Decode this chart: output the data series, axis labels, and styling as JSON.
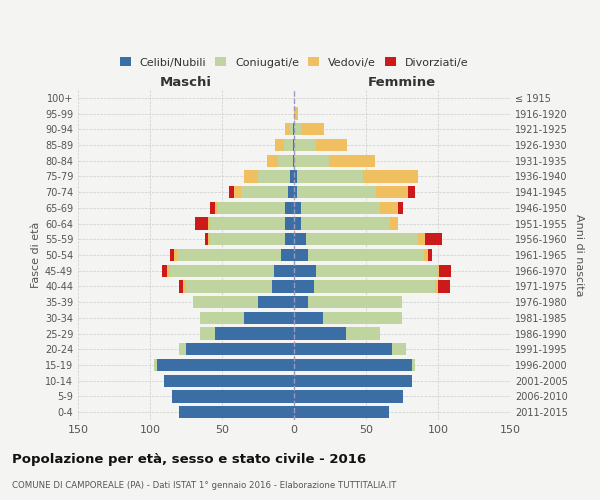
{
  "age_groups": [
    "0-4",
    "5-9",
    "10-14",
    "15-19",
    "20-24",
    "25-29",
    "30-34",
    "35-39",
    "40-44",
    "45-49",
    "50-54",
    "55-59",
    "60-64",
    "65-69",
    "70-74",
    "75-79",
    "80-84",
    "85-89",
    "90-94",
    "95-99",
    "100+"
  ],
  "birth_years": [
    "2011-2015",
    "2006-2010",
    "2001-2005",
    "1996-2000",
    "1991-1995",
    "1986-1990",
    "1981-1985",
    "1976-1980",
    "1971-1975",
    "1966-1970",
    "1961-1965",
    "1956-1960",
    "1951-1955",
    "1946-1950",
    "1941-1945",
    "1936-1940",
    "1931-1935",
    "1926-1930",
    "1921-1925",
    "1916-1920",
    "≤ 1915"
  ],
  "colors": {
    "celibi": "#3b6ea5",
    "coniugati": "#c0d4a0",
    "vedovi": "#f0c060",
    "divorziati": "#cc1a1a"
  },
  "maschi": {
    "celibi": [
      80,
      85,
      90,
      95,
      75,
      55,
      35,
      25,
      15,
      14,
      9,
      6,
      6,
      6,
      4,
      3,
      1,
      1,
      1,
      0,
      0
    ],
    "coniugati": [
      0,
      0,
      0,
      2,
      5,
      10,
      30,
      45,
      60,
      72,
      72,
      52,
      52,
      47,
      33,
      22,
      10,
      6,
      2,
      0,
      0
    ],
    "vedovi": [
      0,
      0,
      0,
      0,
      0,
      0,
      0,
      0,
      2,
      2,
      2,
      2,
      2,
      2,
      5,
      10,
      8,
      6,
      3,
      0,
      0
    ],
    "divorziati": [
      0,
      0,
      0,
      0,
      0,
      0,
      0,
      0,
      3,
      4,
      3,
      2,
      9,
      3,
      3,
      0,
      0,
      0,
      0,
      0,
      0
    ]
  },
  "femmine": {
    "celibi": [
      66,
      76,
      82,
      82,
      68,
      36,
      20,
      10,
      14,
      15,
      10,
      8,
      5,
      5,
      2,
      2,
      0,
      0,
      0,
      0,
      0
    ],
    "coniugati": [
      0,
      0,
      0,
      2,
      10,
      24,
      55,
      65,
      84,
      84,
      80,
      78,
      62,
      55,
      55,
      46,
      24,
      15,
      5,
      0,
      0
    ],
    "vedovi": [
      0,
      0,
      0,
      0,
      0,
      0,
      0,
      0,
      2,
      2,
      3,
      5,
      5,
      12,
      22,
      38,
      32,
      22,
      16,
      3,
      0
    ],
    "divorziati": [
      0,
      0,
      0,
      0,
      0,
      0,
      0,
      0,
      8,
      8,
      3,
      12,
      0,
      4,
      5,
      0,
      0,
      0,
      0,
      0,
      0
    ]
  },
  "title": "Popolazione per età, sesso e stato civile - 2016",
  "subtitle": "COMUNE DI CAMPOREALE (PA) - Dati ISTAT 1° gennaio 2016 - Elaborazione TUTTITALIA.IT",
  "xlabel_left": "Maschi",
  "xlabel_right": "Femmine",
  "ylabel_left": "Fasce di età",
  "ylabel_right": "Anni di nascita",
  "xlim": 150,
  "background_color": "#f4f4f2",
  "grid_color": "#cccccc",
  "legend_labels": [
    "Celibi/Nubili",
    "Coniugati/e",
    "Vedovi/e",
    "Divorziati/e"
  ]
}
